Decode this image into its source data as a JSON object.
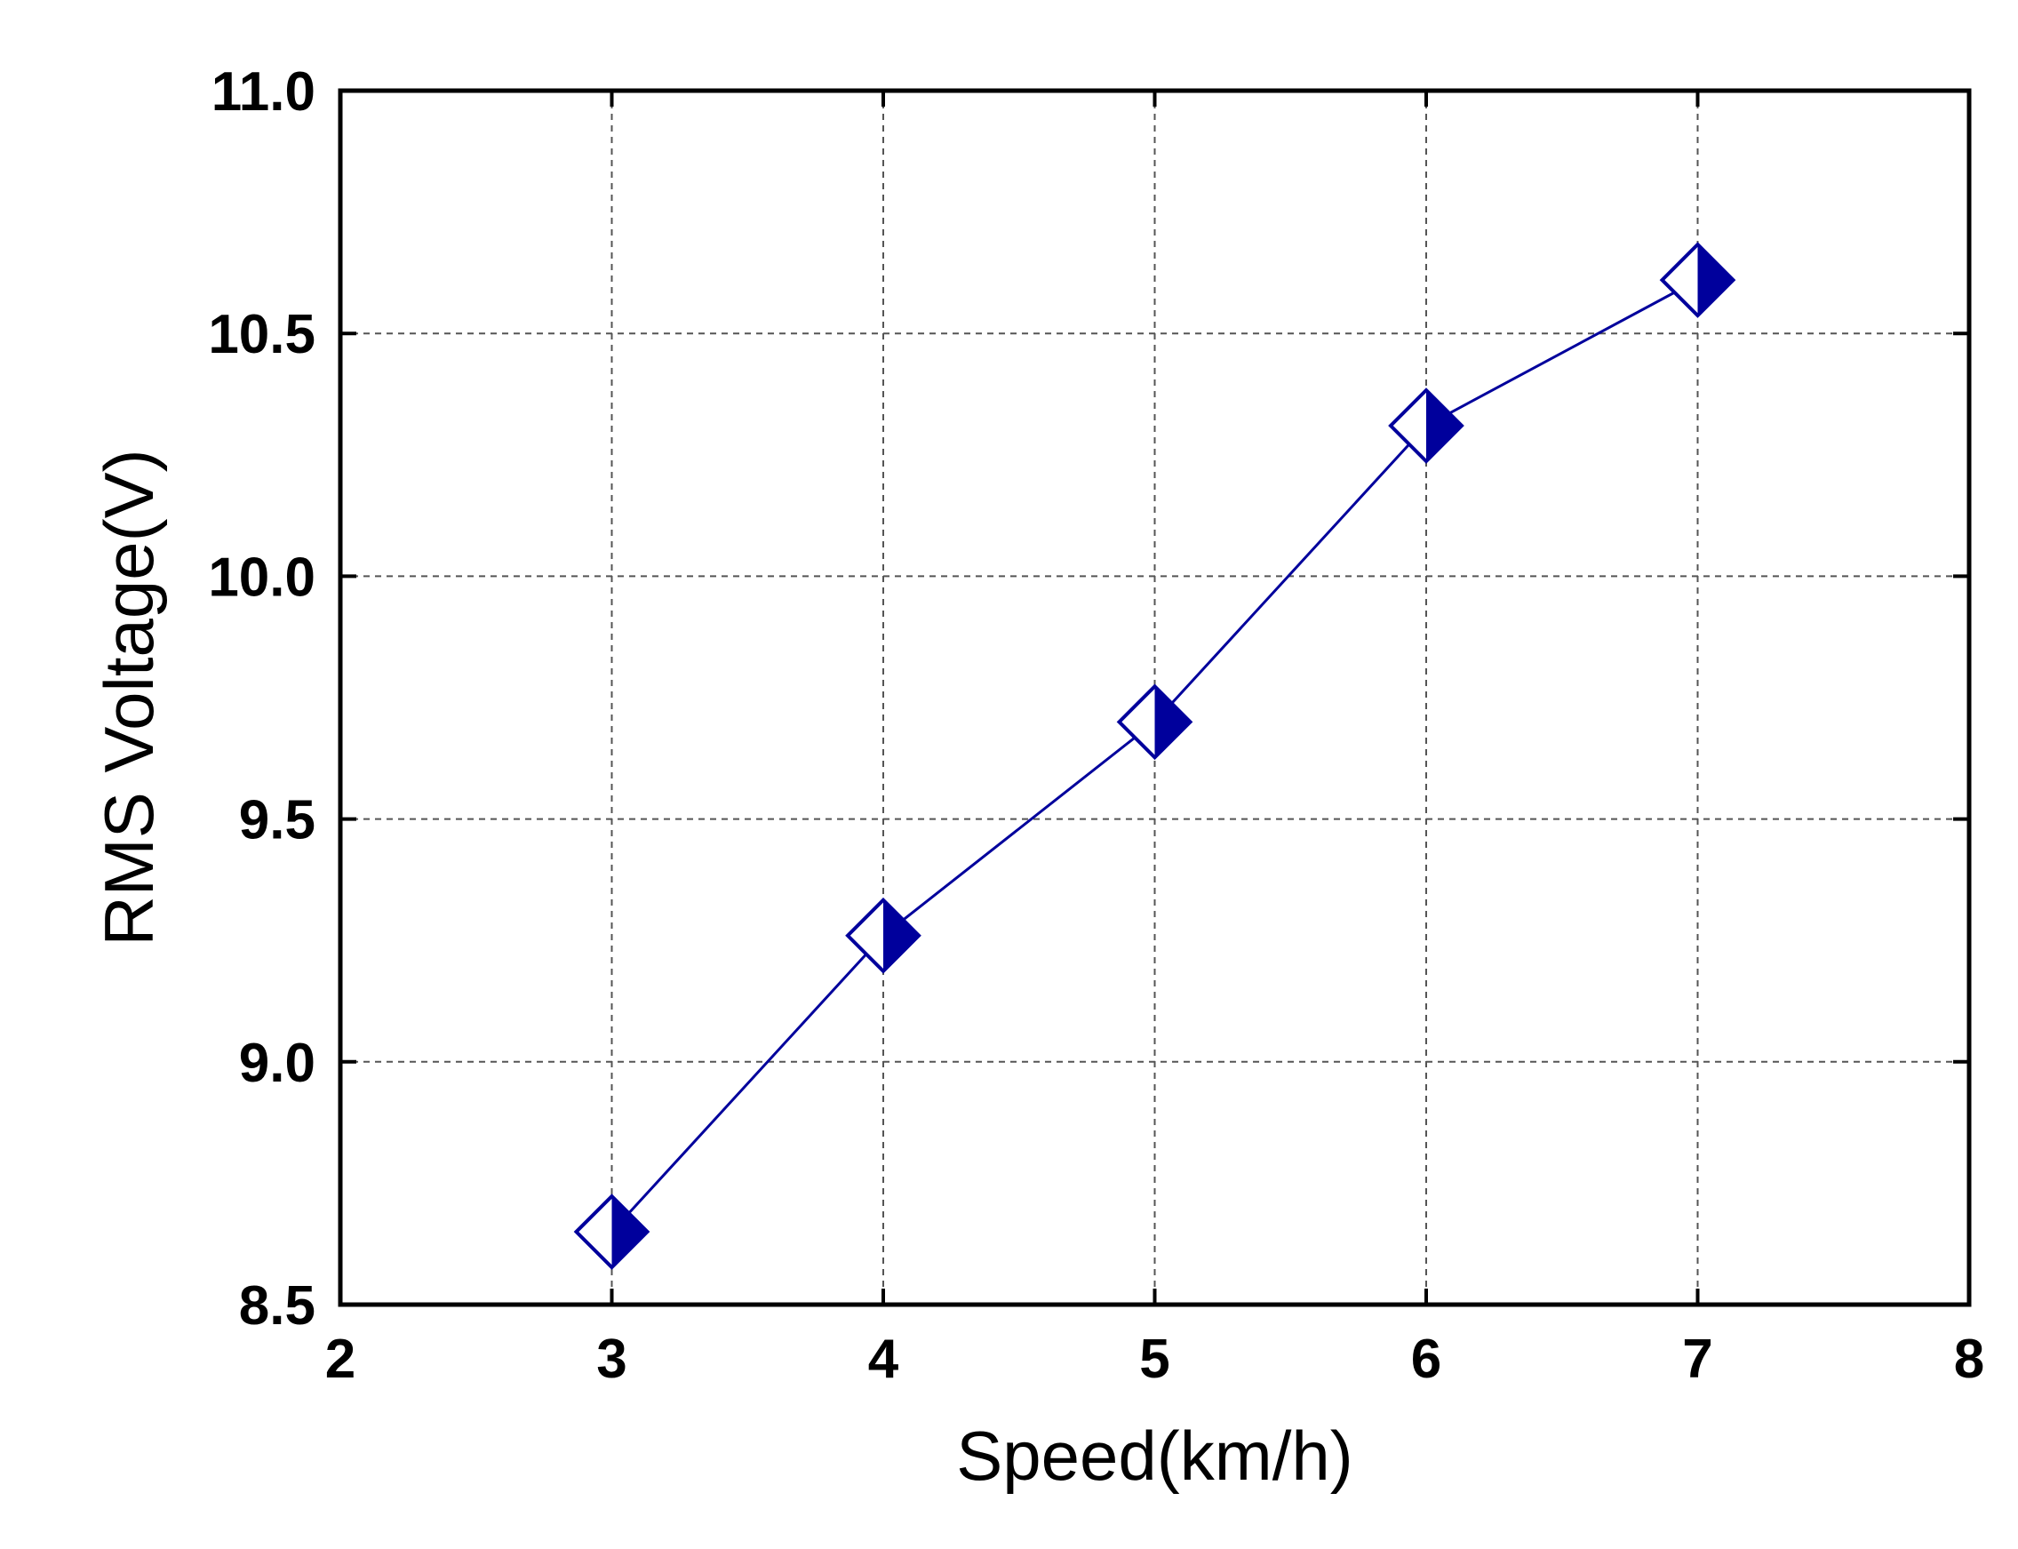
{
  "chart_data": {
    "type": "line",
    "title": "",
    "xlabel": "Speed(km/h)",
    "ylabel": "RMS Voltage(V)",
    "xlim": [
      2,
      8
    ],
    "ylim": [
      8.5,
      11.0
    ],
    "xticks": [
      2,
      3,
      4,
      5,
      6,
      7,
      8
    ],
    "yticks": [
      8.5,
      9.0,
      9.5,
      10.0,
      10.5,
      11.0
    ],
    "xtick_labels": [
      "2",
      "3",
      "4",
      "5",
      "6",
      "7",
      "8"
    ],
    "ytick_labels": [
      "8.5",
      "9.0",
      "9.5",
      "10.0",
      "10.5",
      "11.0"
    ],
    "grid": true,
    "series": [
      {
        "x": [
          3,
          4,
          5,
          6,
          7
        ],
        "y": [
          8.65,
          9.26,
          9.7,
          10.31,
          10.61
        ],
        "color": "#00009c",
        "marker": "half-filled-diamond"
      }
    ]
  }
}
